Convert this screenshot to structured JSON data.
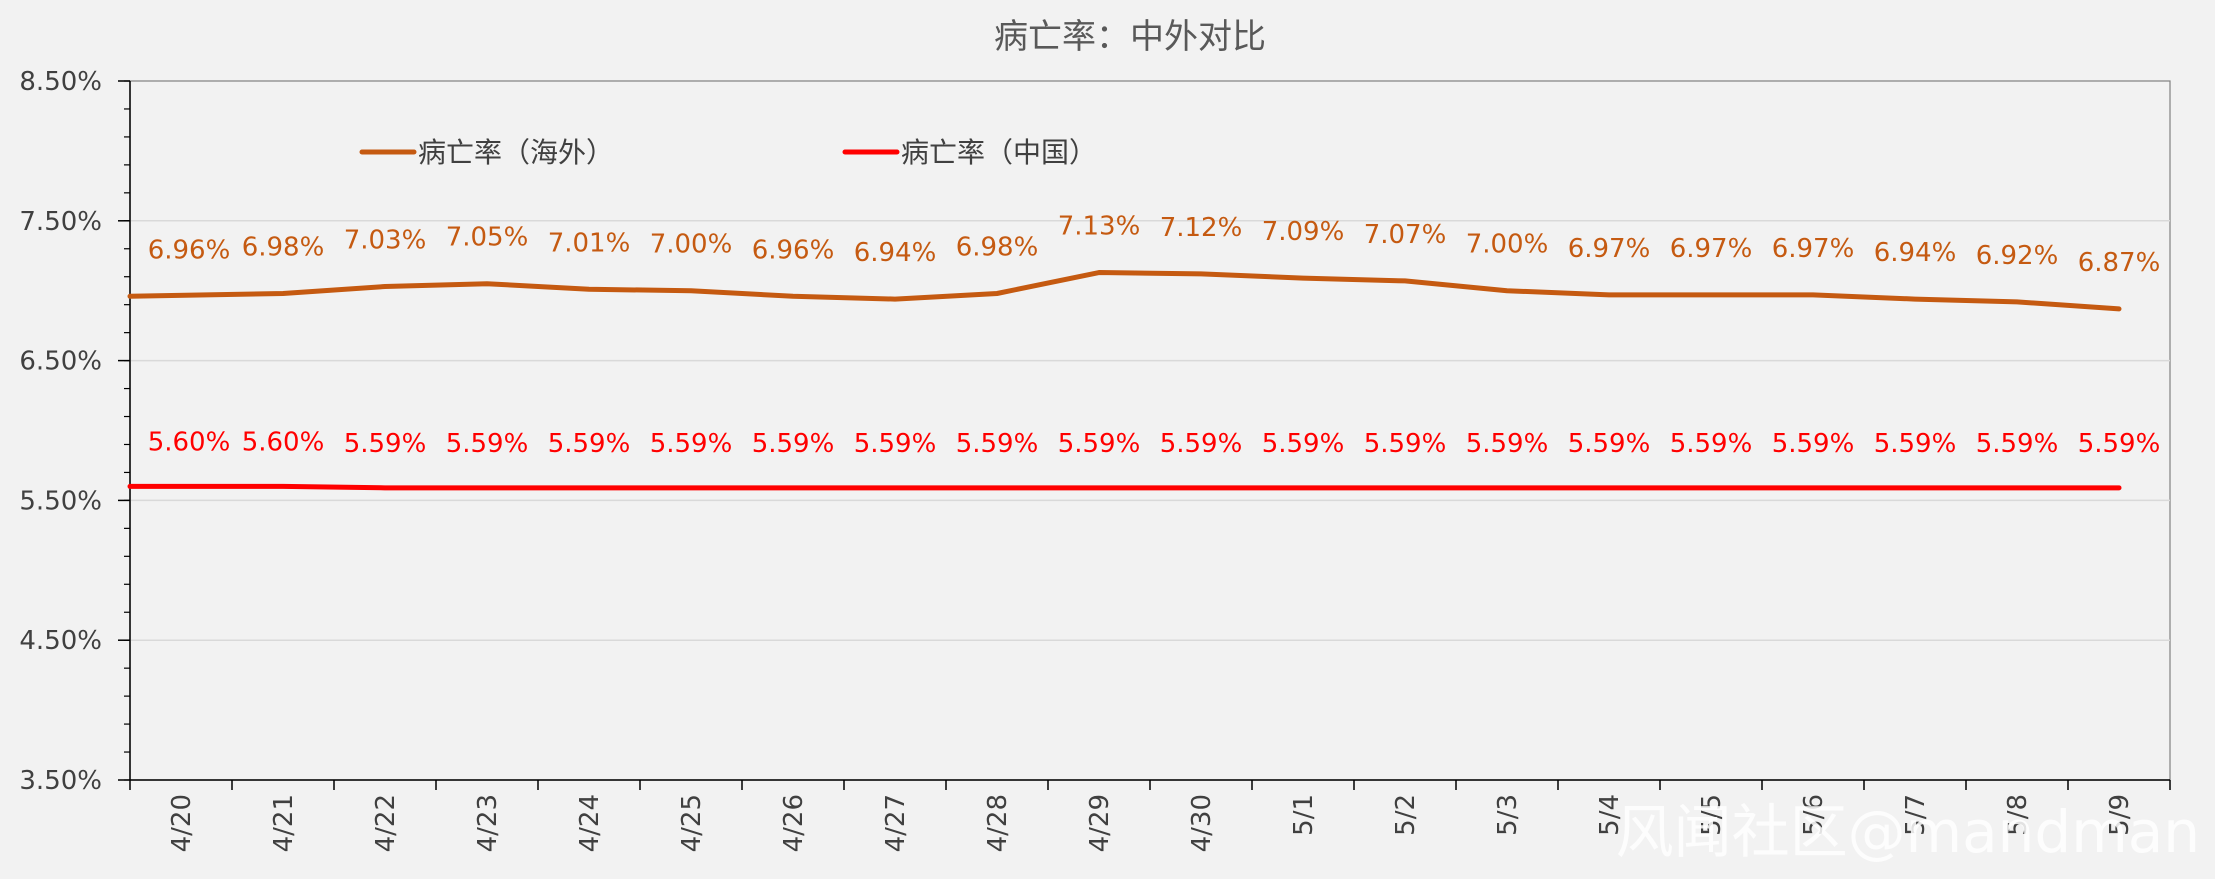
{
  "chart_data": {
    "type": "line",
    "title": "病亡率：中外对比",
    "xlabel": "",
    "ylabel": "",
    "ylim": [
      0.035,
      0.085
    ],
    "y_ticks": [
      "3.50%",
      "4.50%",
      "5.50%",
      "6.50%",
      "7.50%",
      "8.50%"
    ],
    "y_tick_values": [
      0.035,
      0.045,
      0.055,
      0.065,
      0.075,
      0.085
    ],
    "grid": true,
    "legend": "top-left",
    "categories": [
      "4/20",
      "4/21",
      "4/22",
      "4/23",
      "4/24",
      "4/25",
      "4/26",
      "4/27",
      "4/28",
      "4/29",
      "4/30",
      "5/1",
      "5/2",
      "5/3",
      "5/4",
      "5/5",
      "5/6",
      "5/7",
      "5/8",
      "5/9"
    ],
    "series": [
      {
        "name": "病亡率（海外）",
        "color": "#c55a11",
        "values": [
          0.0696,
          0.0698,
          0.0703,
          0.0705,
          0.0701,
          0.07,
          0.0696,
          0.0694,
          0.0698,
          0.0713,
          0.0712,
          0.0709,
          0.0707,
          0.07,
          0.0697,
          0.0697,
          0.0697,
          0.0694,
          0.0692,
          0.0687
        ],
        "labels": [
          "6.96%",
          "6.98%",
          "7.03%",
          "7.05%",
          "7.01%",
          "7.00%",
          "6.96%",
          "6.94%",
          "6.98%",
          "7.13%",
          "7.12%",
          "7.09%",
          "7.07%",
          "7.00%",
          "6.97%",
          "6.97%",
          "6.97%",
          "6.94%",
          "6.92%",
          "6.87%"
        ]
      },
      {
        "name": "病亡率（中国）",
        "color": "#ff0000",
        "values": [
          0.056,
          0.056,
          0.0559,
          0.0559,
          0.0559,
          0.0559,
          0.0559,
          0.0559,
          0.0559,
          0.0559,
          0.0559,
          0.0559,
          0.0559,
          0.0559,
          0.0559,
          0.0559,
          0.0559,
          0.0559,
          0.0559,
          0.0559
        ],
        "labels": [
          "5.60%",
          "5.60%",
          "5.59%",
          "5.59%",
          "5.59%",
          "5.59%",
          "5.59%",
          "5.59%",
          "5.59%",
          "5.59%",
          "5.59%",
          "5.59%",
          "5.59%",
          "5.59%",
          "5.59%",
          "5.59%",
          "5.59%",
          "5.59%",
          "5.59%",
          "5.59%"
        ]
      }
    ]
  },
  "watermark": "风闻社区@mandman",
  "colors": {
    "background": "#f2f2f2",
    "grid": "#d9d9d9",
    "axis": "#000000"
  }
}
